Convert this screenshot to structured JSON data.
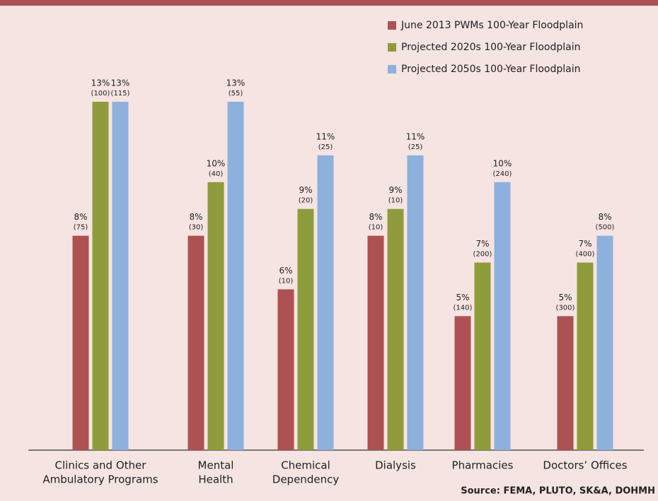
{
  "chart_data": {
    "type": "bar",
    "categories": [
      [
        "Clinics and Other",
        "Ambulatory Programs"
      ],
      [
        "Mental",
        "Health"
      ],
      [
        "Chemical",
        "Dependency"
      ],
      [
        "Dialysis"
      ],
      [
        "Pharmacies"
      ],
      [
        "Doctors’ Offices"
      ]
    ],
    "series": [
      {
        "name": "June 2013 PWMs 100-Year Floodplain",
        "color": "#ae5153",
        "values": [
          8,
          8,
          6,
          8,
          5,
          5
        ],
        "value_labels": [
          "8%",
          "8%",
          "6%",
          "8%",
          "5%",
          "5%"
        ],
        "count_labels": [
          "(75)",
          "(30)",
          "(10)",
          "(10)",
          "(140)",
          "(300)"
        ]
      },
      {
        "name": "Projected 2020s 100-Year Floodplain",
        "color": "#8f9c3b",
        "values": [
          13,
          10,
          9,
          9,
          7,
          7
        ],
        "value_labels": [
          "13%",
          "10%",
          "9%",
          "9%",
          "7%",
          "7%"
        ],
        "count_labels": [
          "(100)",
          "(40)",
          "(20)",
          "(10)",
          "(200)",
          "(400)"
        ]
      },
      {
        "name": "Projected 2050s 100-Year Floodplain",
        "color": "#8eb0dc",
        "values": [
          13,
          13,
          11,
          11,
          10,
          8
        ],
        "value_labels": [
          "13%",
          "13%",
          "11%",
          "11%",
          "10%",
          "8%"
        ],
        "count_labels": [
          "(115)",
          "(55)",
          "(25)",
          "(25)",
          "(240)",
          "(500)"
        ]
      }
    ],
    "ylim": [
      0,
      13
    ],
    "source": "Source: FEMA, PLUTO, SK&A, DOHMH"
  }
}
